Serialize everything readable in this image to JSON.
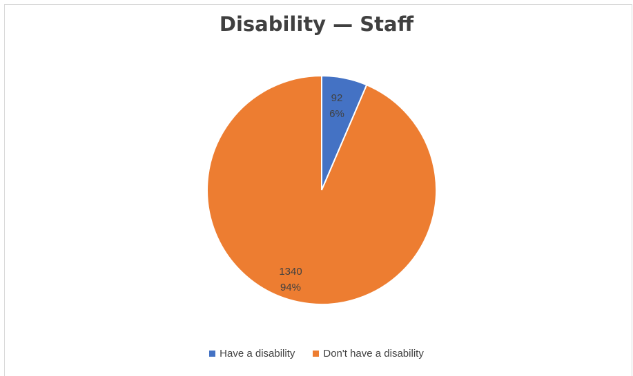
{
  "chart_data": {
    "type": "pie",
    "title": "Disability — Staff",
    "categories": [
      "Have a disability",
      "Don't have a disability"
    ],
    "values": [
      92,
      1340
    ],
    "percent_labels": [
      "6%",
      "94%"
    ],
    "colors": [
      "#4472C4",
      "#ED7D31"
    ],
    "legend_position": "bottom"
  }
}
